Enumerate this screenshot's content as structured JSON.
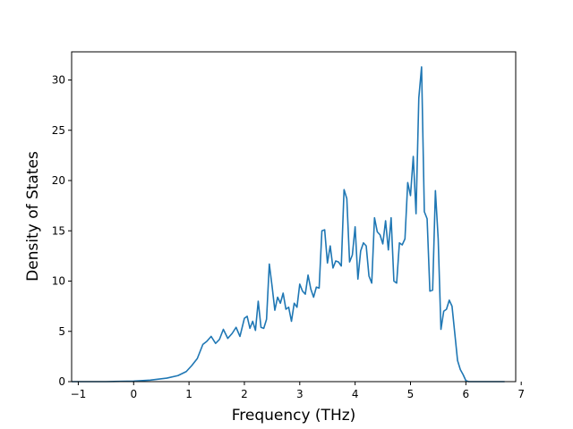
{
  "chart_data": {
    "type": "line",
    "title": "",
    "xlabel": "Frequency (THz)",
    "ylabel": "Density of States",
    "xlim": [
      -1.12,
      6.9
    ],
    "ylim": [
      0,
      32.8
    ],
    "xticks": [
      -1,
      0,
      1,
      2,
      3,
      4,
      5,
      6,
      7
    ],
    "yticks": [
      0,
      5,
      10,
      15,
      20,
      25,
      30
    ],
    "grid": false,
    "legend": "none",
    "series": [
      {
        "color": "#1f77b4",
        "x": [
          -1.12,
          -1.0,
          -0.5,
          0.0,
          0.3,
          0.6,
          0.8,
          0.95,
          1.05,
          1.15,
          1.25,
          1.32,
          1.4,
          1.48,
          1.55,
          1.62,
          1.7,
          1.78,
          1.85,
          1.92,
          2.0,
          2.05,
          2.1,
          2.15,
          2.2,
          2.25,
          2.3,
          2.35,
          2.4,
          2.45,
          2.5,
          2.55,
          2.6,
          2.65,
          2.7,
          2.75,
          2.8,
          2.85,
          2.9,
          2.95,
          3.0,
          3.05,
          3.1,
          3.15,
          3.2,
          3.25,
          3.3,
          3.35,
          3.4,
          3.45,
          3.5,
          3.55,
          3.6,
          3.65,
          3.7,
          3.75,
          3.8,
          3.85,
          3.9,
          3.95,
          4.0,
          4.05,
          4.1,
          4.15,
          4.2,
          4.25,
          4.3,
          4.35,
          4.4,
          4.45,
          4.5,
          4.55,
          4.6,
          4.65,
          4.7,
          4.75,
          4.8,
          4.85,
          4.9,
          4.95,
          5.0,
          5.05,
          5.1,
          5.15,
          5.2,
          5.25,
          5.3,
          5.35,
          5.4,
          5.45,
          5.5,
          5.55,
          5.6,
          5.65,
          5.7,
          5.75,
          5.8,
          5.85,
          5.9,
          5.95,
          6.0,
          6.05,
          6.2,
          6.7
        ],
        "y": [
          0,
          0,
          0,
          0.05,
          0.15,
          0.35,
          0.6,
          1.0,
          1.6,
          2.3,
          3.7,
          4.0,
          4.5,
          3.8,
          4.2,
          5.2,
          4.3,
          4.8,
          5.4,
          4.5,
          6.3,
          6.5,
          5.3,
          6.0,
          5.1,
          8.0,
          5.4,
          5.3,
          6.2,
          11.7,
          9.5,
          7.1,
          8.4,
          7.8,
          8.8,
          7.2,
          7.4,
          6.0,
          7.8,
          7.4,
          9.7,
          9.0,
          8.7,
          10.6,
          9.2,
          8.4,
          9.4,
          9.3,
          15.0,
          15.1,
          11.8,
          13.5,
          11.3,
          12.0,
          11.9,
          11.5,
          19.1,
          18.2,
          11.9,
          12.6,
          15.4,
          10.2,
          13.0,
          13.8,
          13.5,
          10.5,
          9.8,
          16.3,
          14.9,
          14.6,
          13.7,
          16.0,
          13.1,
          16.3,
          10.0,
          9.8,
          13.8,
          13.6,
          14.2,
          19.8,
          18.5,
          22.4,
          16.7,
          28.2,
          31.3,
          16.9,
          16.2,
          9.0,
          9.1,
          19.0,
          14.2,
          5.2,
          7.0,
          7.2,
          8.1,
          7.5,
          4.8,
          2.1,
          1.2,
          0.7,
          0.1,
          0,
          0,
          0
        ]
      }
    ]
  }
}
